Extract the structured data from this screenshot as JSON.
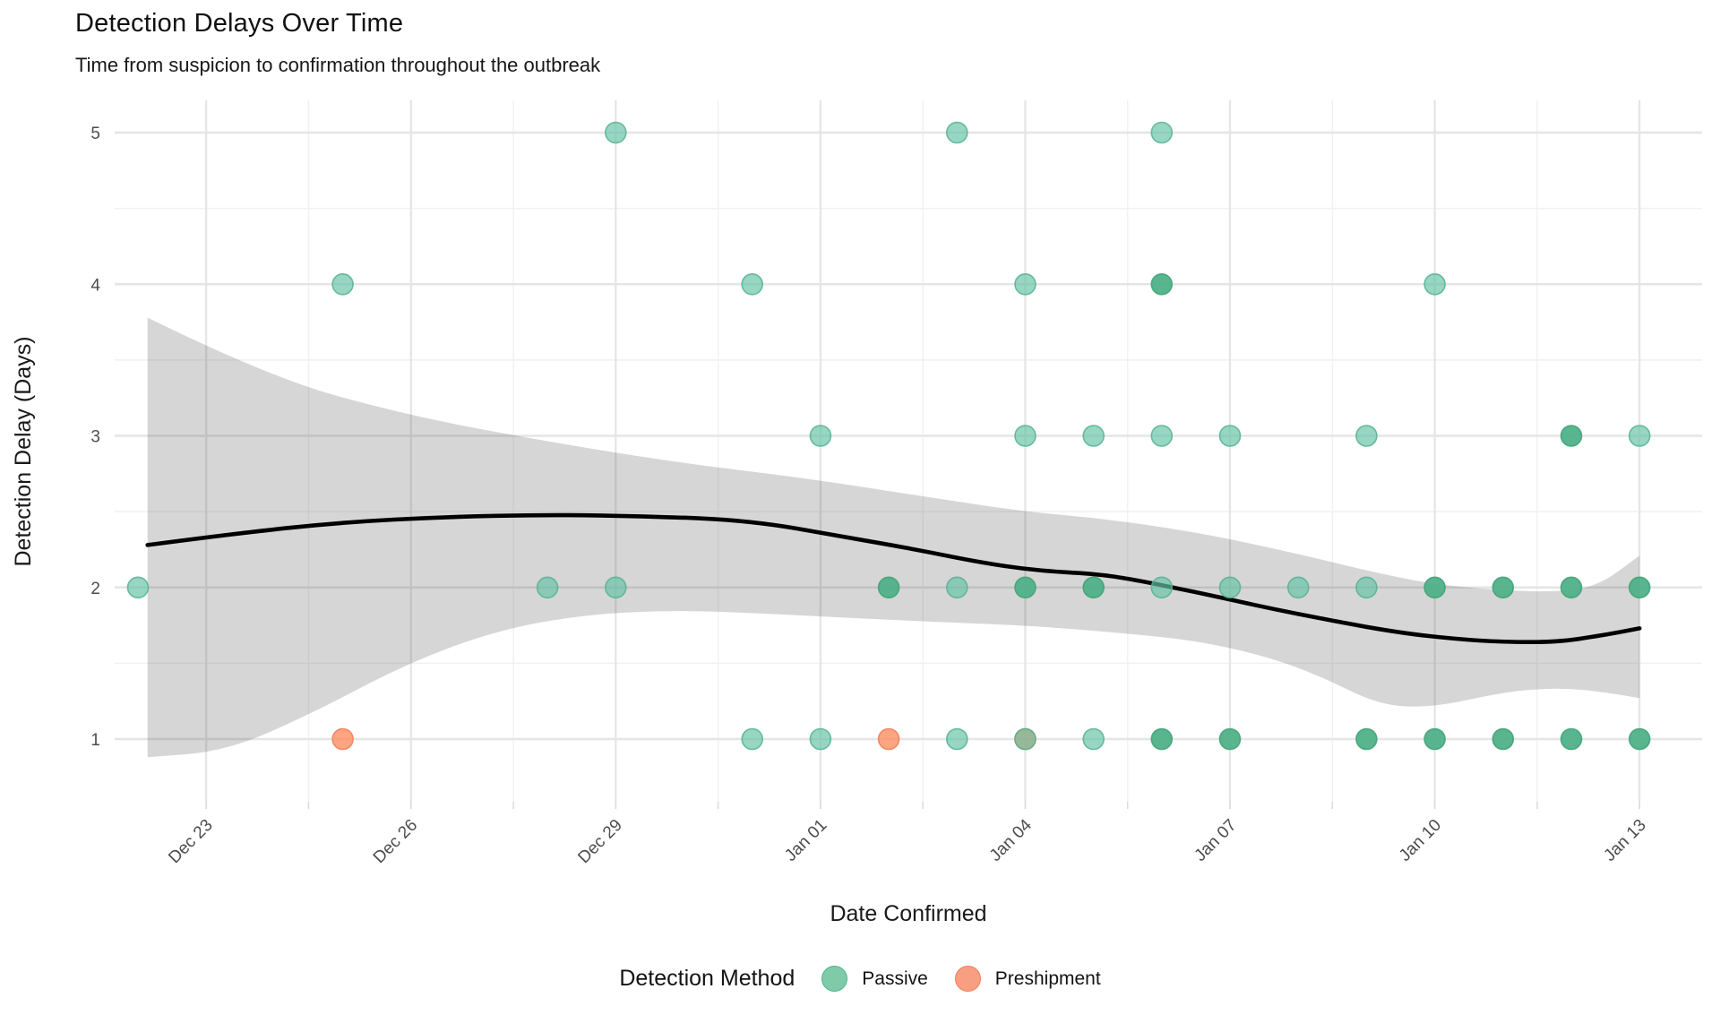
{
  "header": {
    "title": "Detection Delays Over Time",
    "subtitle": "Time from suspicion to confirmation throughout the outbreak"
  },
  "colors": {
    "passive": "#66C2A5",
    "passive_stroke": "#55B190",
    "passive_double": "#4FB087",
    "passive_double_stroke": "#3CA176",
    "preshipment": "#FC8D62",
    "preshipment_stroke": "#EF7E55",
    "legend_passive_fill": "#7FCBA9",
    "legend_preshipment_fill": "#F89F82",
    "smooth_line": "#000000",
    "ribbon_fill": "rgba(70,70,70,0.22)",
    "grid_major": "#e5e5e5",
    "grid_minor": "#f1f1f1",
    "tick_mark": "#d9d9d9",
    "tick_label": "#4d4d4d",
    "axis_title": "#1a1a1a"
  },
  "chart_data": {
    "type": "scatter",
    "title": "Detection Delays Over Time",
    "subtitle": "Time from suspicion to confirmation throughout the outbreak",
    "xlabel": "Date Confirmed",
    "ylabel": "Detection Delay (Days)",
    "ylim": [
      0.59,
      5.21
    ],
    "xlim_days": [
      -0.34,
      22.9
    ],
    "grid": "on",
    "legend_position": "bottom",
    "x_ticks": [
      {
        "label": "Dec 23",
        "day": 1
      },
      {
        "label": "Dec 26",
        "day": 4
      },
      {
        "label": "Dec 29",
        "day": 7
      },
      {
        "label": "Jan 01",
        "day": 10
      },
      {
        "label": "Jan 04",
        "day": 13
      },
      {
        "label": "Jan 07",
        "day": 16
      },
      {
        "label": "Jan 10",
        "day": 19
      },
      {
        "label": "Jan 13",
        "day": 22
      }
    ],
    "x_minor_days": [
      2.5,
      5.5,
      8.5,
      11.5,
      14.5,
      17.5,
      20.5
    ],
    "y_ticks": [
      1,
      2,
      3,
      4,
      5
    ],
    "y_minor_ticks": [
      1.5,
      2.5,
      3.5,
      4.5
    ],
    "legend": {
      "title": "Detection Method",
      "items": [
        {
          "label": "Passive",
          "method": "Passive"
        },
        {
          "label": "Preshipment",
          "method": "Preshipment"
        }
      ]
    },
    "points": [
      {
        "date": "Dec 22",
        "day": 0,
        "delay": 2,
        "method": "Passive",
        "n": 1
      },
      {
        "date": "Dec 25",
        "day": 3,
        "delay": 4,
        "method": "Passive",
        "n": 1
      },
      {
        "date": "Dec 25",
        "day": 3,
        "delay": 1,
        "method": "Preshipment",
        "n": 1
      },
      {
        "date": "Dec 28",
        "day": 6,
        "delay": 2,
        "method": "Passive",
        "n": 1
      },
      {
        "date": "Dec 29",
        "day": 7,
        "delay": 5,
        "method": "Passive",
        "n": 1
      },
      {
        "date": "Dec 29",
        "day": 7,
        "delay": 2,
        "method": "Passive",
        "n": 1
      },
      {
        "date": "Dec 31",
        "day": 9,
        "delay": 4,
        "method": "Passive",
        "n": 1
      },
      {
        "date": "Dec 31",
        "day": 9,
        "delay": 1,
        "method": "Passive",
        "n": 1
      },
      {
        "date": "Jan 01",
        "day": 10,
        "delay": 3,
        "method": "Passive",
        "n": 1
      },
      {
        "date": "Jan 01",
        "day": 10,
        "delay": 1,
        "method": "Passive",
        "n": 1
      },
      {
        "date": "Jan 02",
        "day": 11,
        "delay": 2,
        "method": "Passive",
        "n": 2
      },
      {
        "date": "Jan 02",
        "day": 11,
        "delay": 1,
        "method": "Preshipment",
        "n": 1
      },
      {
        "date": "Jan 03",
        "day": 12,
        "delay": 5,
        "method": "Passive",
        "n": 1
      },
      {
        "date": "Jan 03",
        "day": 12,
        "delay": 2,
        "method": "Passive",
        "n": 1
      },
      {
        "date": "Jan 03",
        "day": 12,
        "delay": 1,
        "method": "Passive",
        "n": 1
      },
      {
        "date": "Jan 04",
        "day": 13,
        "delay": 4,
        "method": "Passive",
        "n": 1
      },
      {
        "date": "Jan 04",
        "day": 13,
        "delay": 3,
        "method": "Passive",
        "n": 1
      },
      {
        "date": "Jan 04",
        "day": 13,
        "delay": 2,
        "method": "Passive",
        "n": 2
      },
      {
        "date": "Jan 04",
        "day": 13,
        "delay": 1,
        "method": "Preshipment",
        "n": 1
      },
      {
        "date": "Jan 04",
        "day": 13,
        "delay": 1,
        "method": "Passive",
        "n": 1
      },
      {
        "date": "Jan 05",
        "day": 14,
        "delay": 3,
        "method": "Passive",
        "n": 1
      },
      {
        "date": "Jan 05",
        "day": 14,
        "delay": 2,
        "method": "Passive",
        "n": 2
      },
      {
        "date": "Jan 05",
        "day": 14,
        "delay": 1,
        "method": "Passive",
        "n": 1
      },
      {
        "date": "Jan 06",
        "day": 15,
        "delay": 5,
        "method": "Passive",
        "n": 1
      },
      {
        "date": "Jan 06",
        "day": 15,
        "delay": 4,
        "method": "Passive",
        "n": 2
      },
      {
        "date": "Jan 06",
        "day": 15,
        "delay": 3,
        "method": "Passive",
        "n": 1
      },
      {
        "date": "Jan 06",
        "day": 15,
        "delay": 2,
        "method": "Passive",
        "n": 1
      },
      {
        "date": "Jan 06",
        "day": 15,
        "delay": 1,
        "method": "Passive",
        "n": 2
      },
      {
        "date": "Jan 07",
        "day": 16,
        "delay": 3,
        "method": "Passive",
        "n": 1
      },
      {
        "date": "Jan 07",
        "day": 16,
        "delay": 2,
        "method": "Passive",
        "n": 1
      },
      {
        "date": "Jan 07",
        "day": 16,
        "delay": 1,
        "method": "Passive",
        "n": 2
      },
      {
        "date": "Jan 08",
        "day": 17,
        "delay": 2,
        "method": "Passive",
        "n": 1
      },
      {
        "date": "Jan 09",
        "day": 18,
        "delay": 3,
        "method": "Passive",
        "n": 1
      },
      {
        "date": "Jan 09",
        "day": 18,
        "delay": 2,
        "method": "Passive",
        "n": 1
      },
      {
        "date": "Jan 09",
        "day": 18,
        "delay": 1,
        "method": "Passive",
        "n": 2
      },
      {
        "date": "Jan 10",
        "day": 19,
        "delay": 4,
        "method": "Passive",
        "n": 1
      },
      {
        "date": "Jan 10",
        "day": 19,
        "delay": 2,
        "method": "Passive",
        "n": 2
      },
      {
        "date": "Jan 10",
        "day": 19,
        "delay": 1,
        "method": "Passive",
        "n": 2
      },
      {
        "date": "Jan 11",
        "day": 20,
        "delay": 2,
        "method": "Passive",
        "n": 2
      },
      {
        "date": "Jan 11",
        "day": 20,
        "delay": 1,
        "method": "Passive",
        "n": 2
      },
      {
        "date": "Jan 12",
        "day": 21,
        "delay": 3,
        "method": "Passive",
        "n": 2
      },
      {
        "date": "Jan 12",
        "day": 21,
        "delay": 2,
        "method": "Passive",
        "n": 2
      },
      {
        "date": "Jan 12",
        "day": 21,
        "delay": 1,
        "method": "Passive",
        "n": 2
      },
      {
        "date": "Jan 13",
        "day": 22,
        "delay": 3,
        "method": "Passive",
        "n": 1
      },
      {
        "date": "Jan 13",
        "day": 22,
        "delay": 2,
        "method": "Passive",
        "n": 2
      },
      {
        "date": "Jan 13",
        "day": 22,
        "delay": 1,
        "method": "Passive",
        "n": 2
      }
    ],
    "smooth_line": [
      [
        0.14,
        2.28
      ],
      [
        1.5,
        2.36
      ],
      [
        3,
        2.43
      ],
      [
        4.5,
        2.465
      ],
      [
        6,
        2.48
      ],
      [
        7.5,
        2.47
      ],
      [
        9,
        2.44
      ],
      [
        10.4,
        2.33
      ],
      [
        11.4,
        2.25
      ],
      [
        12.4,
        2.16
      ],
      [
        13.2,
        2.11
      ],
      [
        14,
        2.09
      ],
      [
        14.5,
        2.06
      ],
      [
        15.5,
        1.97
      ],
      [
        16.5,
        1.87
      ],
      [
        17.5,
        1.78
      ],
      [
        18.5,
        1.7
      ],
      [
        19.3,
        1.66
      ],
      [
        20,
        1.64
      ],
      [
        20.8,
        1.64
      ],
      [
        21.4,
        1.68
      ],
      [
        22,
        1.73
      ]
    ],
    "ribbon_upper": [
      [
        0.14,
        3.78
      ],
      [
        1.9,
        3.39
      ],
      [
        3.9,
        3.14
      ],
      [
        5.9,
        2.97
      ],
      [
        7.8,
        2.83
      ],
      [
        9.8,
        2.72
      ],
      [
        11.8,
        2.58
      ],
      [
        13,
        2.5
      ],
      [
        14,
        2.46
      ],
      [
        15,
        2.4
      ],
      [
        16,
        2.32
      ],
      [
        17.2,
        2.2
      ],
      [
        18.2,
        2.09
      ],
      [
        19,
        2.02
      ],
      [
        20,
        1.98
      ],
      [
        20.8,
        1.97
      ],
      [
        21.4,
        2.01
      ],
      [
        22,
        2.21
      ]
    ],
    "ribbon_lower": [
      [
        0.14,
        0.88
      ],
      [
        1.3,
        0.92
      ],
      [
        2.6,
        1.18
      ],
      [
        3.9,
        1.49
      ],
      [
        5.2,
        1.71
      ],
      [
        6.5,
        1.82
      ],
      [
        7.8,
        1.85
      ],
      [
        9.1,
        1.83
      ],
      [
        10.4,
        1.8
      ],
      [
        11.8,
        1.77
      ],
      [
        13,
        1.75
      ],
      [
        14.4,
        1.7
      ],
      [
        15.5,
        1.65
      ],
      [
        16.5,
        1.55
      ],
      [
        17.3,
        1.42
      ],
      [
        18.2,
        1.22
      ],
      [
        19,
        1.21
      ],
      [
        20,
        1.31
      ],
      [
        20.8,
        1.34
      ],
      [
        21.5,
        1.31
      ],
      [
        22,
        1.27
      ]
    ]
  }
}
